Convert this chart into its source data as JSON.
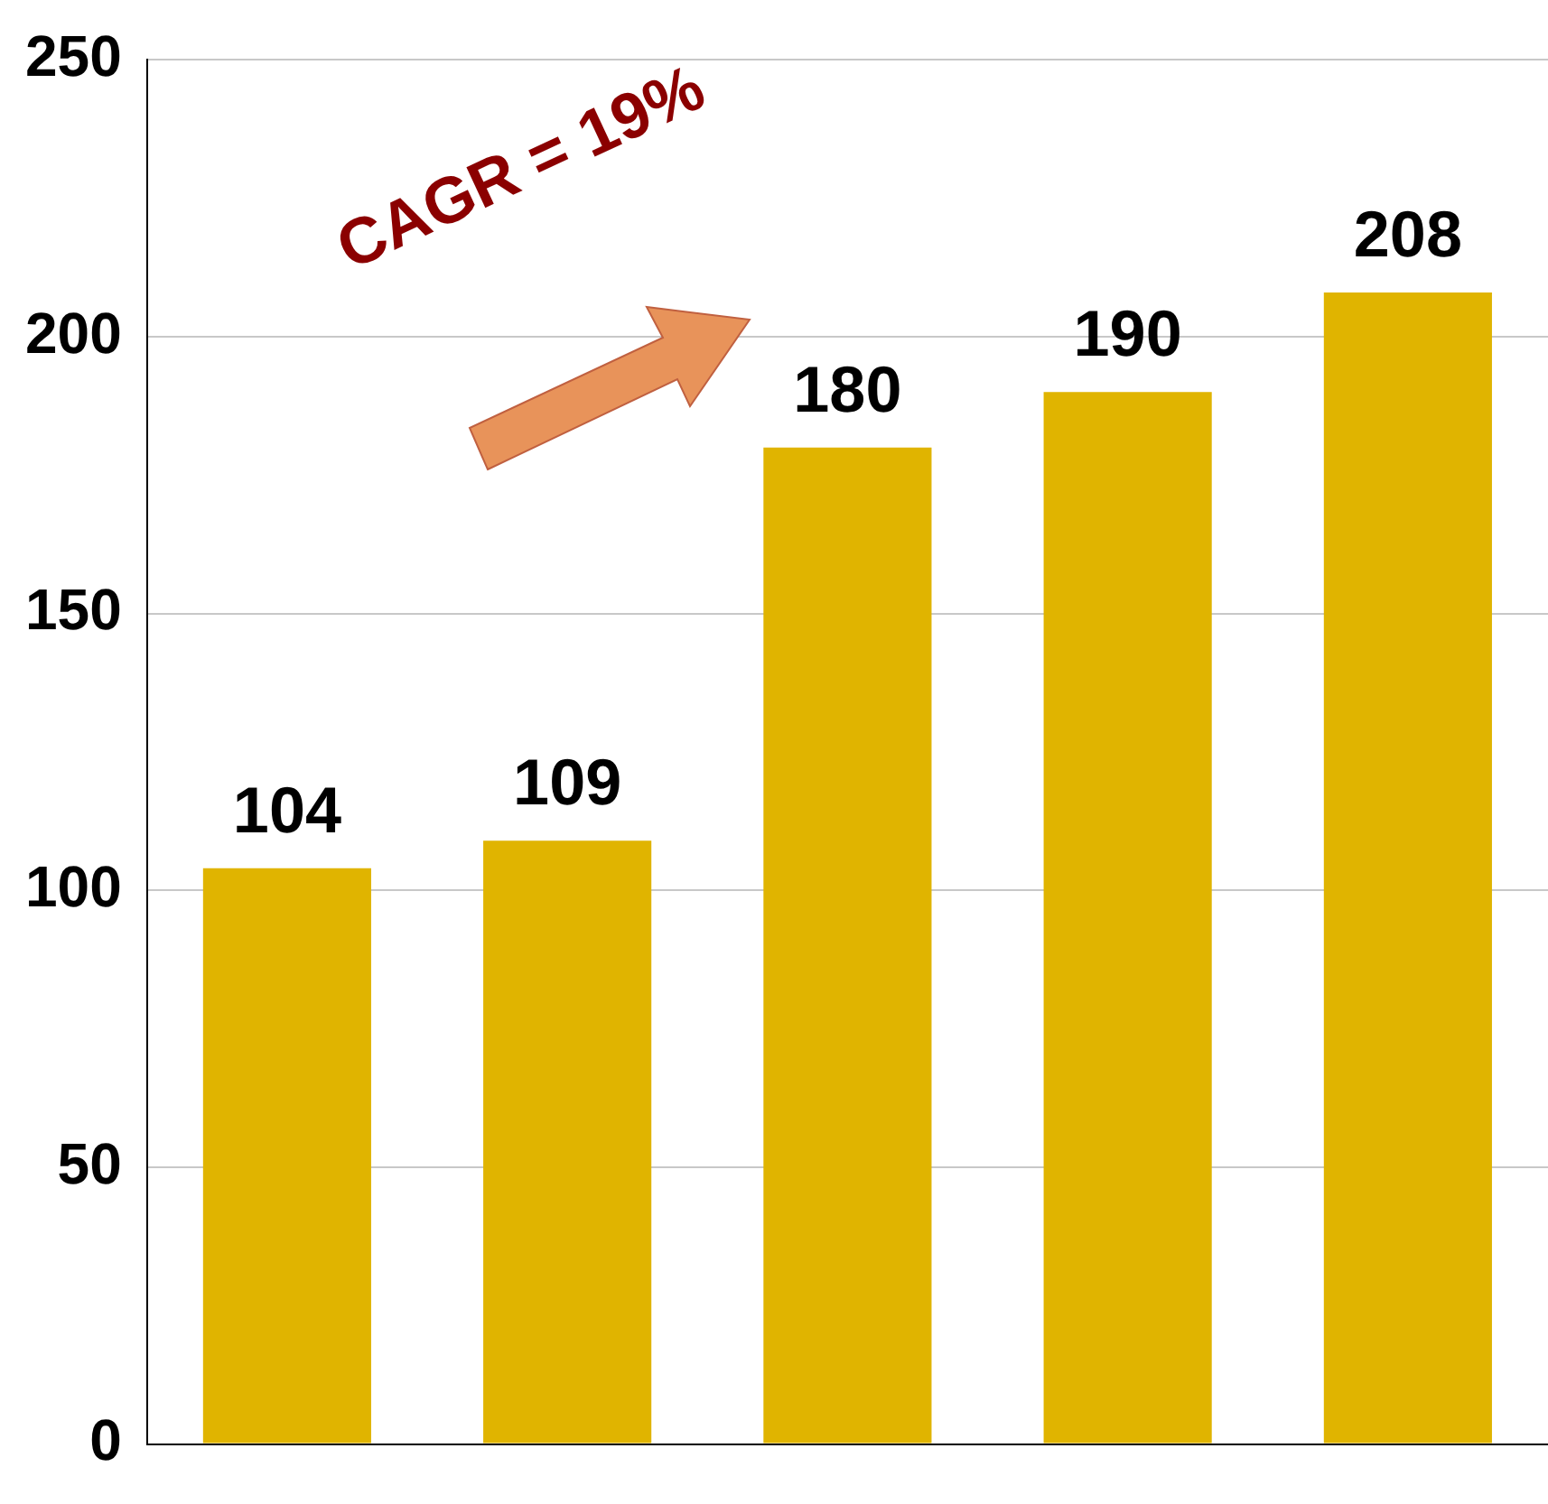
{
  "chart_data": {
    "type": "bar",
    "categories": [
      null,
      null,
      null,
      null,
      null
    ],
    "values": [
      104,
      109,
      180,
      190,
      208
    ],
    "color": "#e0b400",
    "ylim": [
      0,
      250
    ],
    "yticks": [
      0,
      50,
      100,
      150,
      200,
      250
    ],
    "grid": "y",
    "legend": false,
    "tick_labels": "y",
    "data_labels": true,
    "annotations": [
      "CAGR = 19%"
    ]
  }
}
